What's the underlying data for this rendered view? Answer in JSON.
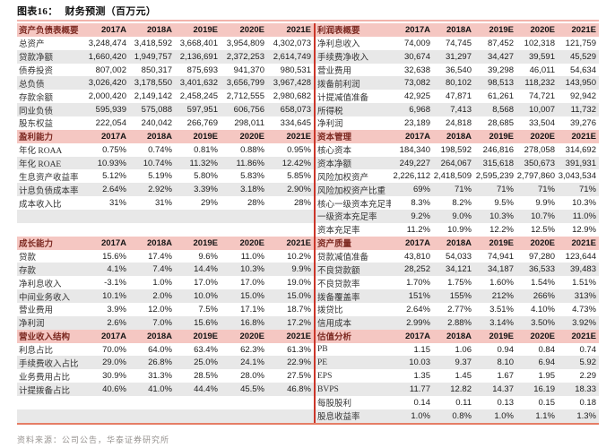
{
  "title": {
    "label": "图表16：",
    "caption": "财务预测（百万元）"
  },
  "footer": {
    "text": "资料来源：公司公告，华泰证券研究所"
  },
  "years": [
    "2017A",
    "2018A",
    "2019E",
    "2020E",
    "2021E"
  ],
  "colors": {
    "header_bg": "#f5c7c2",
    "header_label_text": "#7d2a22",
    "alt_row_bg": "#e8e8e8",
    "divider_red": "#cb362a",
    "top_line": "#f2b3ab",
    "bottom_line": "#e57d66"
  },
  "left_table": {
    "sections": [
      {
        "title": "资产负债表概要",
        "blank_rows": 0,
        "rows": [
          {
            "label": "总资产",
            "values": [
              "3,248,474",
              "3,418,592",
              "3,668,401",
              "3,954,809",
              "4,302,073"
            ]
          },
          {
            "label": "贷款净额",
            "values": [
              "1,660,420",
              "1,949,757",
              "2,136,691",
              "2,372,253",
              "2,614,749"
            ]
          },
          {
            "label": "债券投资",
            "values": [
              "807,002",
              "850,317",
              "875,693",
              "941,370",
              "980,531"
            ]
          },
          {
            "label": "总负债",
            "values": [
              "3,026,420",
              "3,178,550",
              "3,401,632",
              "3,656,799",
              "3,967,428"
            ]
          },
          {
            "label": "存款余额",
            "values": [
              "2,000,420",
              "2,149,142",
              "2,458,245",
              "2,712,555",
              "2,980,682"
            ]
          },
          {
            "label": "同业负债",
            "values": [
              "595,939",
              "575,088",
              "597,951",
              "606,756",
              "658,073"
            ]
          },
          {
            "label": "股东权益",
            "values": [
              "222,054",
              "240,042",
              "266,769",
              "298,011",
              "334,645"
            ]
          }
        ]
      },
      {
        "title": "盈利能力",
        "blank_rows": 2,
        "rows": [
          {
            "label": "年化 ROAA",
            "values": [
              "0.75%",
              "0.74%",
              "0.81%",
              "0.88%",
              "0.95%"
            ]
          },
          {
            "label": "年化 ROAE",
            "values": [
              "10.93%",
              "10.74%",
              "11.32%",
              "11.86%",
              "12.42%"
            ]
          },
          {
            "label": "生息资产收益率",
            "values": [
              "5.12%",
              "5.19%",
              "5.80%",
              "5.83%",
              "5.85%"
            ]
          },
          {
            "label": "计息负债成本率",
            "values": [
              "2.64%",
              "2.92%",
              "3.39%",
              "3.18%",
              "2.90%"
            ]
          },
          {
            "label": "成本收入比",
            "values": [
              "31%",
              "31%",
              "29%",
              "28%",
              "28%"
            ]
          }
        ]
      },
      {
        "title": "成长能力",
        "blank_rows": 0,
        "rows": [
          {
            "label": "贷款",
            "values": [
              "15.6%",
              "17.4%",
              "9.6%",
              "11.0%",
              "10.2%"
            ]
          },
          {
            "label": "存款",
            "values": [
              "4.1%",
              "7.4%",
              "14.4%",
              "10.3%",
              "9.9%"
            ]
          },
          {
            "label": "净利息收入",
            "values": [
              "-3.1%",
              "1.0%",
              "17.0%",
              "17.0%",
              "19.0%"
            ]
          },
          {
            "label": "中间业务收入",
            "values": [
              "10.1%",
              "2.0%",
              "10.0%",
              "15.0%",
              "15.0%"
            ]
          },
          {
            "label": "营业费用",
            "values": [
              "3.9%",
              "12.0%",
              "7.5%",
              "17.1%",
              "18.7%"
            ]
          },
          {
            "label": "净利润",
            "values": [
              "2.6%",
              "7.0%",
              "15.6%",
              "16.8%",
              "17.2%"
            ]
          }
        ]
      },
      {
        "title": "营业收入结构",
        "blank_rows": 2,
        "rows": [
          {
            "label": "利息占比",
            "values": [
              "70.0%",
              "64.0%",
              "63.4%",
              "62.3%",
              "61.3%"
            ]
          },
          {
            "label": "手续费收入占比",
            "values": [
              "29.0%",
              "26.8%",
              "25.0%",
              "24.1%",
              "22.9%"
            ]
          },
          {
            "label": "业务费用占比",
            "values": [
              "30.9%",
              "31.3%",
              "28.5%",
              "28.0%",
              "27.5%"
            ]
          },
          {
            "label": "计提拨备占比",
            "values": [
              "40.6%",
              "41.0%",
              "44.4%",
              "45.5%",
              "46.8%"
            ]
          }
        ]
      }
    ]
  },
  "right_table": {
    "sections": [
      {
        "title": "利润表概要",
        "blank_rows": 0,
        "rows": [
          {
            "label": "净利息收入",
            "values": [
              "74,009",
              "74,745",
              "87,452",
              "102,318",
              "121,759"
            ]
          },
          {
            "label": "手续费净收入",
            "values": [
              "30,674",
              "31,297",
              "34,427",
              "39,591",
              "45,529"
            ]
          },
          {
            "label": "营业费用",
            "values": [
              "32,638",
              "36,540",
              "39,298",
              "46,011",
              "54,634"
            ]
          },
          {
            "label": "拨备前利润",
            "values": [
              "73,082",
              "80,102",
              "98,513",
              "118,232",
              "143,950"
            ]
          },
          {
            "label": "计提减值准备",
            "values": [
              "42,925",
              "47,871",
              "61,261",
              "74,721",
              "92,942"
            ]
          },
          {
            "label": "所得税",
            "values": [
              "6,968",
              "7,413",
              "8,568",
              "10,007",
              "11,732"
            ]
          },
          {
            "label": "净利润",
            "values": [
              "23,189",
              "24,818",
              "28,685",
              "33,504",
              "39,276"
            ]
          }
        ]
      },
      {
        "title": "资本管理",
        "blank_rows": 0,
        "rows": [
          {
            "label": "核心资本",
            "values": [
              "184,340",
              "198,592",
              "246,816",
              "278,058",
              "314,692"
            ]
          },
          {
            "label": "资本净额",
            "values": [
              "249,227",
              "264,067",
              "315,618",
              "350,673",
              "391,931"
            ]
          },
          {
            "label": "风险加权资产",
            "values": [
              "2,226,112",
              "2,418,509",
              "2,595,239",
              "2,797,860",
              "3,043,534"
            ]
          },
          {
            "label": "风险加权资产比重",
            "values": [
              "69%",
              "71%",
              "71%",
              "71%",
              "71%"
            ]
          },
          {
            "label": "核心一级资本充足率",
            "values": [
              "8.3%",
              "8.2%",
              "9.5%",
              "9.9%",
              "10.3%"
            ]
          },
          {
            "label": "一级资本充足率",
            "values": [
              "9.2%",
              "9.0%",
              "10.3%",
              "10.7%",
              "11.0%"
            ]
          },
          {
            "label": "资本充足率",
            "values": [
              "11.2%",
              "10.9%",
              "12.2%",
              "12.5%",
              "12.9%"
            ]
          }
        ]
      },
      {
        "title": "资产质量",
        "blank_rows": 0,
        "rows": [
          {
            "label": "贷款减值准备",
            "values": [
              "43,810",
              "54,033",
              "74,941",
              "97,280",
              "123,644"
            ]
          },
          {
            "label": "不良贷款额",
            "values": [
              "28,252",
              "34,121",
              "34,187",
              "36,533",
              "39,483"
            ]
          },
          {
            "label": "不良贷款率",
            "values": [
              "1.70%",
              "1.75%",
              "1.60%",
              "1.54%",
              "1.51%"
            ]
          },
          {
            "label": "拨备覆盖率",
            "values": [
              "151%",
              "155%",
              "212%",
              "266%",
              "313%"
            ]
          },
          {
            "label": "拨贷比",
            "values": [
              "2.64%",
              "2.77%",
              "3.51%",
              "4.10%",
              "4.73%"
            ]
          },
          {
            "label": "信用成本",
            "values": [
              "2.99%",
              "2.88%",
              "3.14%",
              "3.50%",
              "3.92%"
            ]
          }
        ]
      },
      {
        "title": "估值分析",
        "blank_rows": 0,
        "rows": [
          {
            "label": "PB",
            "values": [
              "1.15",
              "1.06",
              "0.94",
              "0.84",
              "0.74"
            ]
          },
          {
            "label": "PE",
            "values": [
              "10.03",
              "9.37",
              "8.10",
              "6.94",
              "5.92"
            ]
          },
          {
            "label": "EPS",
            "values": [
              "1.35",
              "1.45",
              "1.67",
              "1.95",
              "2.29"
            ]
          },
          {
            "label": "BVPS",
            "values": [
              "11.77",
              "12.82",
              "14.37",
              "16.19",
              "18.33"
            ]
          },
          {
            "label": "每股股利",
            "values": [
              "0.14",
              "0.11",
              "0.13",
              "0.15",
              "0.18"
            ]
          },
          {
            "label": "股息收益率",
            "values": [
              "1.0%",
              "0.8%",
              "1.0%",
              "1.1%",
              "1.3%"
            ]
          }
        ]
      }
    ]
  }
}
